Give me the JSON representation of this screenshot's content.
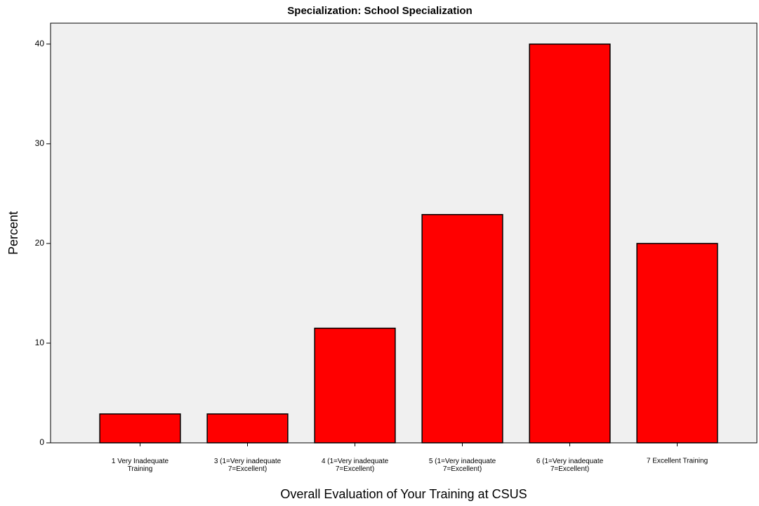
{
  "chart_data": {
    "type": "bar",
    "title": "Specialization: School Specialization",
    "x_label": "Overall Evaluation of Your Training at CSUS",
    "y_label": "Percent",
    "categories": [
      "1 Very Inadequate\nTraining",
      "3 (1=Very inadequate\n7=Excellent)",
      "4 (1=Very inadequate\n7=Excellent)",
      "5 (1=Very inadequate\n7=Excellent)",
      "6 (1=Very inadequate\n7=Excellent)",
      "7 Excellent Training"
    ],
    "values": [
      2.9,
      2.9,
      11.5,
      22.9,
      40,
      20
    ],
    "color": "#ff0000",
    "ylim": [
      0,
      42.1
    ],
    "yticks": [
      0,
      10,
      20,
      30,
      40
    ],
    "grid": false
  }
}
